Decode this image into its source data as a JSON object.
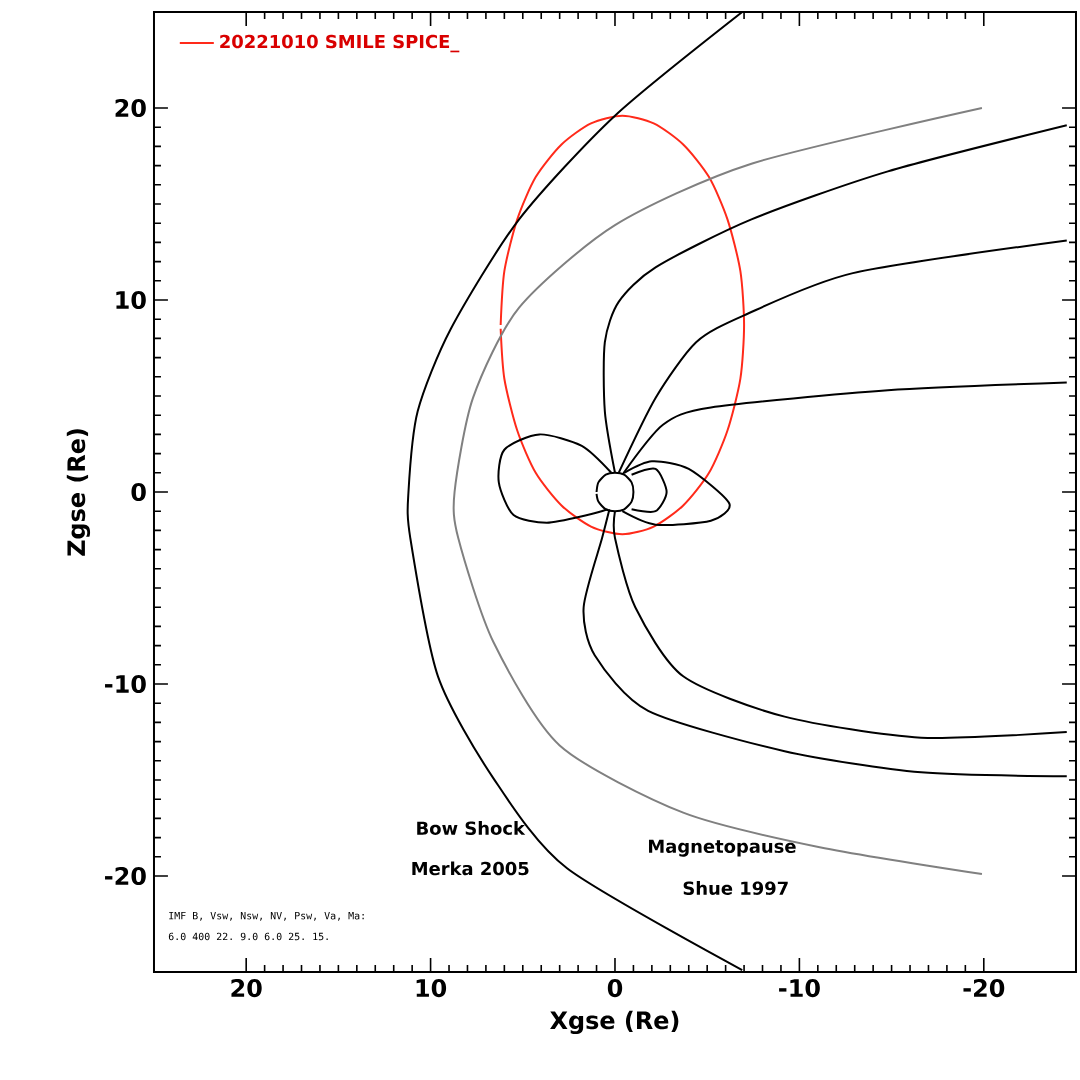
{
  "chart_data": {
    "type": "line",
    "xlabel": "Xgse (Re)",
    "ylabel": "Zgse (Re)",
    "xlim": [
      25,
      -25
    ],
    "ylim": [
      -25,
      25
    ],
    "xticks": [
      20,
      10,
      0,
      -10,
      -20
    ],
    "yticks": [
      -20,
      -10,
      0,
      10,
      20
    ],
    "legend": "top left",
    "marker": "none",
    "line_style": "solid",
    "grid": false,
    "series": [
      {
        "name": "20221010 SMILE SPICE_",
        "color": "#ff2a1a",
        "x": [
          6.2,
          6.0,
          5.3,
          4.3,
          2.9,
          1.3,
          -0.4,
          -2.1,
          -3.7,
          -5.1,
          -6.1,
          -6.8,
          -7.0,
          -6.8,
          -6.1,
          -5.1,
          -3.7,
          -2.1,
          -0.4,
          1.3,
          2.9,
          4.3,
          5.3,
          6.0,
          6.2
        ],
        "values": [
          8.7,
          11.5,
          14.2,
          16.4,
          18.1,
          19.2,
          19.6,
          19.2,
          18.1,
          16.4,
          14.2,
          11.5,
          8.7,
          5.9,
          3.2,
          1.0,
          -0.7,
          -1.8,
          -2.2,
          -1.8,
          -0.7,
          1.0,
          3.2,
          5.9,
          8.5
        ]
      },
      {
        "color": "#000000",
        "x": [
          -6.9,
          0,
          5.2,
          8.9,
          10.7,
          11.2,
          11.1,
          9.6,
          6.6,
          2.6,
          -6.9
        ],
        "values": [
          25,
          19.6,
          14.2,
          8.5,
          4.2,
          0,
          -2.4,
          -9.6,
          -14.9,
          -19.6,
          -24.9
        ]
      },
      {
        "color": "#808080",
        "x": [
          -19.9,
          -7.4,
          0,
          5.2,
          7.7,
          8.7,
          8.5,
          6.6,
          3.0,
          -3.7,
          -11.1,
          -19.9
        ],
        "values": [
          20,
          17.1,
          13.9,
          9.6,
          4.9,
          0,
          -2.4,
          -7.8,
          -13.2,
          -16.7,
          -18.5,
          -19.9
        ]
      },
      {
        "color": "#000000",
        "x": [
          0,
          0.55,
          0.55,
          -0.2,
          -2.2,
          -7.4,
          -14.8,
          -24.5
        ],
        "values": [
          1,
          4.2,
          7.8,
          9.9,
          11.7,
          14.2,
          16.7,
          19.1
        ]
      },
      {
        "color": "#000000",
        "x": [
          -0.2,
          -2.2,
          -4.4,
          -7.0,
          -12.9,
          -24.5
        ],
        "values": [
          1,
          4.9,
          7.8,
          9.2,
          11.4,
          13.1
        ]
      },
      {
        "color": "#000000",
        "x": [
          -0.4,
          -2.6,
          -5.2,
          -14.8,
          -24.5
        ],
        "values": [
          0.9,
          3.5,
          4.4,
          5.3,
          5.7
        ]
      },
      {
        "color": "#000000",
        "x": [
          0.2,
          1.8,
          4.1,
          6.0,
          6.3,
          5.5,
          3.7,
          1.5,
          0.4
        ],
        "values": [
          1.0,
          2.4,
          3.0,
          2.2,
          0.5,
          -1.2,
          -1.6,
          -1.2,
          -0.9
        ]
      },
      {
        "color": "#000000",
        "x": [
          -0.9,
          -2.2,
          -2.8,
          -2.2,
          -0.9
        ],
        "values": [
          0.9,
          1.2,
          0,
          -1.0,
          -0.9
        ]
      },
      {
        "color": "#000000",
        "x": [
          -0.5,
          -2.0,
          -4.0,
          -6.2,
          -5.2,
          -2.2,
          -0.4
        ],
        "values": [
          1.0,
          1.6,
          1.2,
          -0.6,
          -1.5,
          -1.7,
          -1.0
        ]
      },
      {
        "color": "#000000",
        "x": [
          0,
          0,
          -1.1,
          -3.7,
          -9.2,
          -16.6,
          -24.5
        ],
        "values": [
          -1,
          -2.4,
          -6.0,
          -9.6,
          -11.7,
          -12.8,
          -12.5
        ]
      },
      {
        "color": "#000000",
        "x": [
          0.3,
          0.7,
          1.7,
          1.1,
          -1.8,
          -9.2,
          -16.6,
          -24.5
        ],
        "values": [
          -0.9,
          -2.4,
          -6.0,
          -8.5,
          -11.4,
          -13.5,
          -14.6,
          -14.8
        ]
      },
      {
        "color": "#000000",
        "x": [
          1,
          0.9,
          0.5,
          0,
          -0.5,
          -0.9,
          -1,
          -0.9,
          -0.5,
          0,
          0.5,
          0.9,
          1
        ],
        "values": [
          0,
          0.5,
          0.9,
          1,
          0.9,
          0.5,
          0,
          -0.5,
          -0.9,
          -1,
          -0.9,
          -0.5,
          -0.1
        ]
      }
    ],
    "annotations": [
      "Bow Shock",
      "Merka 2005",
      "Magnetopause",
      "Shue 1997",
      "IMF B, Vsw, Nsw, NV, Psw, Va, Ma:",
      "6.0 400 22. 9.0 6.0 25. 15."
    ]
  }
}
